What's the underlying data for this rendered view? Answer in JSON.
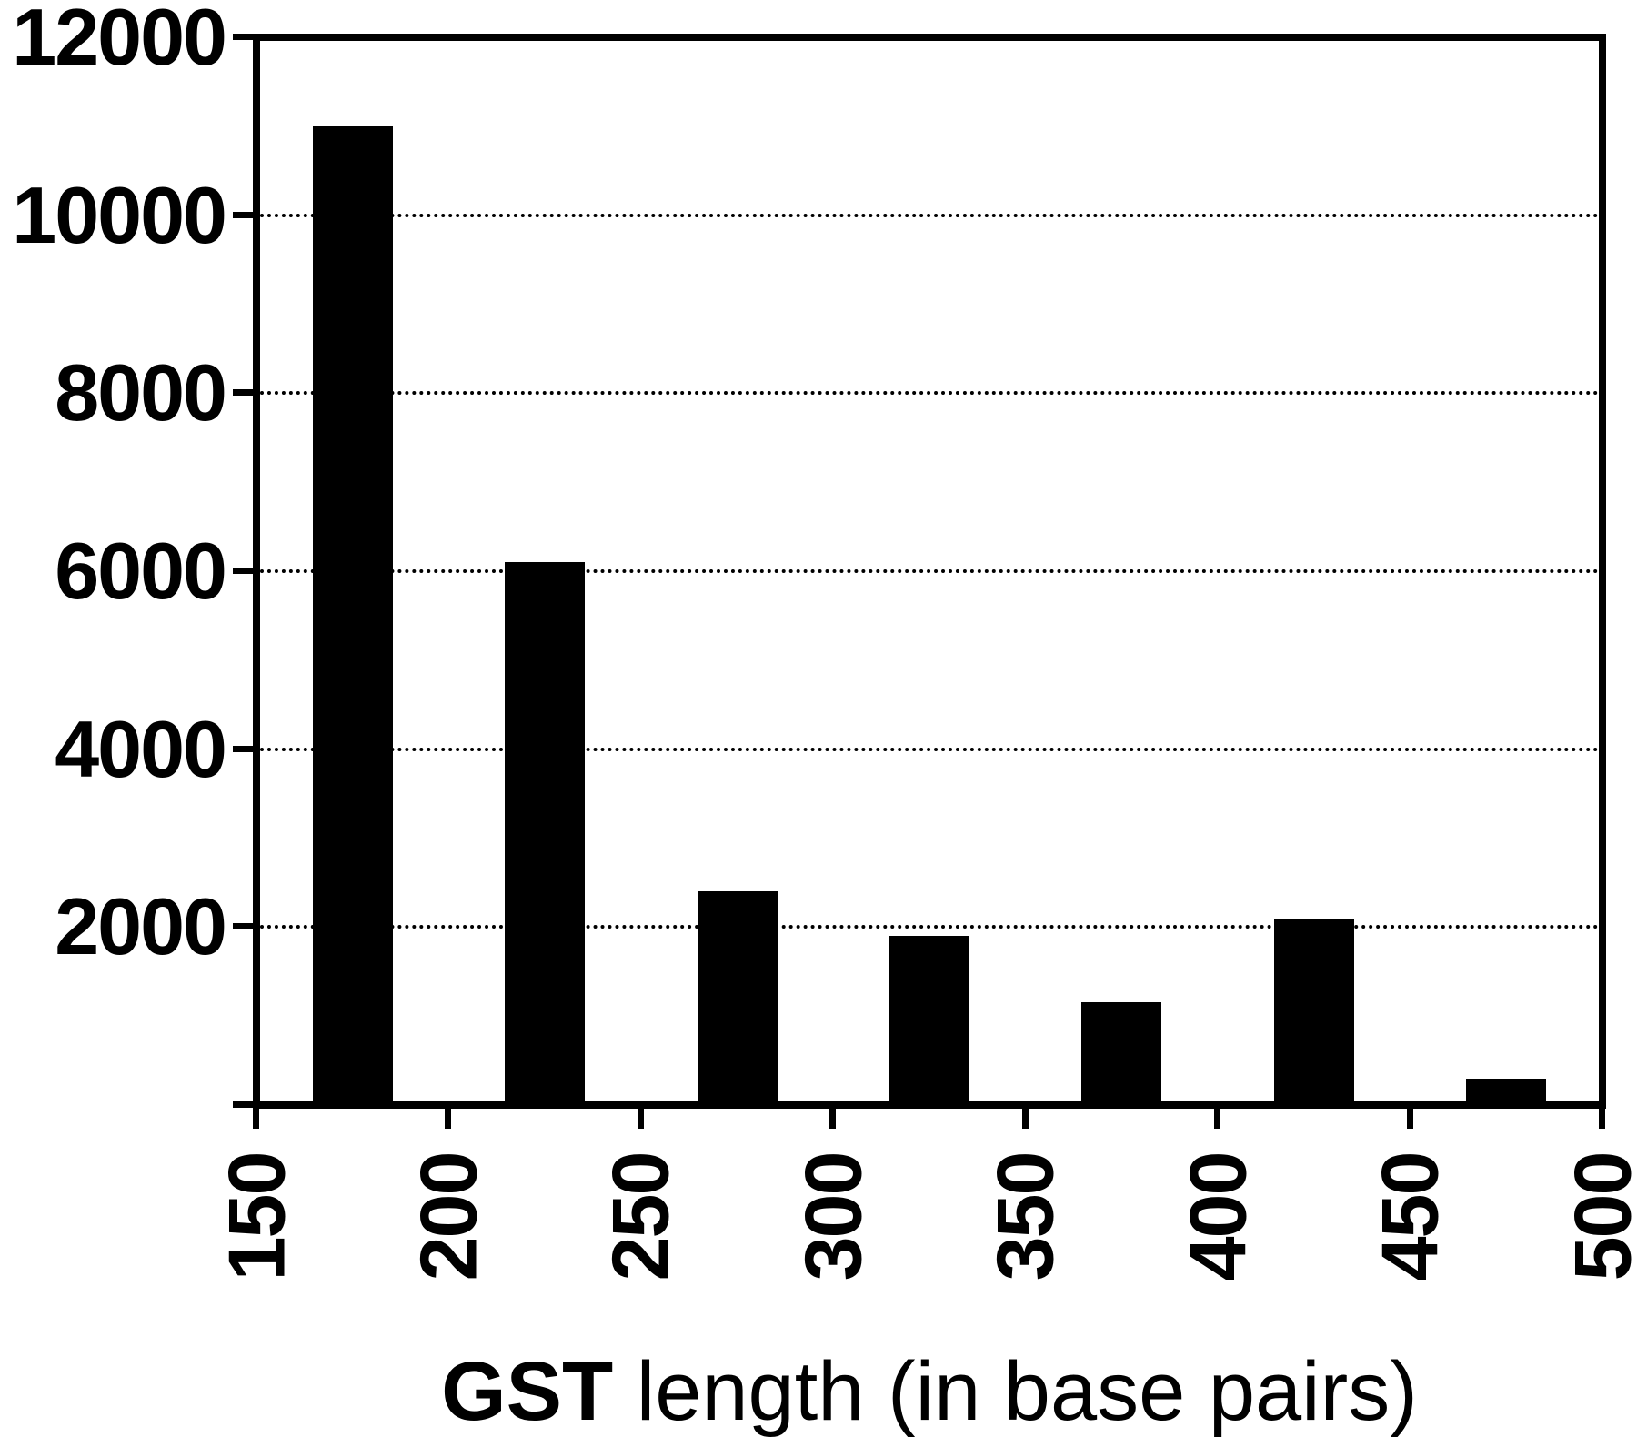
{
  "figure": {
    "background_color": "#ffffff",
    "ink_color": "#000000"
  },
  "chart_data": {
    "type": "bar",
    "title": "",
    "xlabel": "GST length (in base pairs)",
    "xlabel_bold": "GST",
    "xlabel_rest": " length (in base pairs)",
    "ylabel": "",
    "xlim": [
      150,
      500
    ],
    "ylim": [
      0,
      12000
    ],
    "bin_edges": [
      150,
      200,
      250,
      300,
      350,
      400,
      450,
      500
    ],
    "values": [
      11000,
      6100,
      2400,
      1900,
      1150,
      2100,
      300
    ],
    "x_tick_values": [
      150,
      200,
      250,
      300,
      350,
      400,
      450,
      500
    ],
    "x_tick_labels": [
      "150",
      "200",
      "250",
      "300",
      "350",
      "400",
      "450",
      "500"
    ],
    "x_tick_label_rotation_deg": -90,
    "y_tick_values": [
      0,
      2000,
      4000,
      6000,
      8000,
      10000,
      12000
    ],
    "y_tick_labels": [
      "2000",
      "4000",
      "6000",
      "8000",
      "10000",
      "12000"
    ],
    "y_labeled_values": [
      2000,
      4000,
      6000,
      8000,
      10000,
      12000
    ],
    "grid": "horizontal-dotted",
    "gridline_values": [
      2000,
      4000,
      6000,
      8000,
      10000
    ],
    "legend": "none",
    "bar_color": "#000000"
  }
}
